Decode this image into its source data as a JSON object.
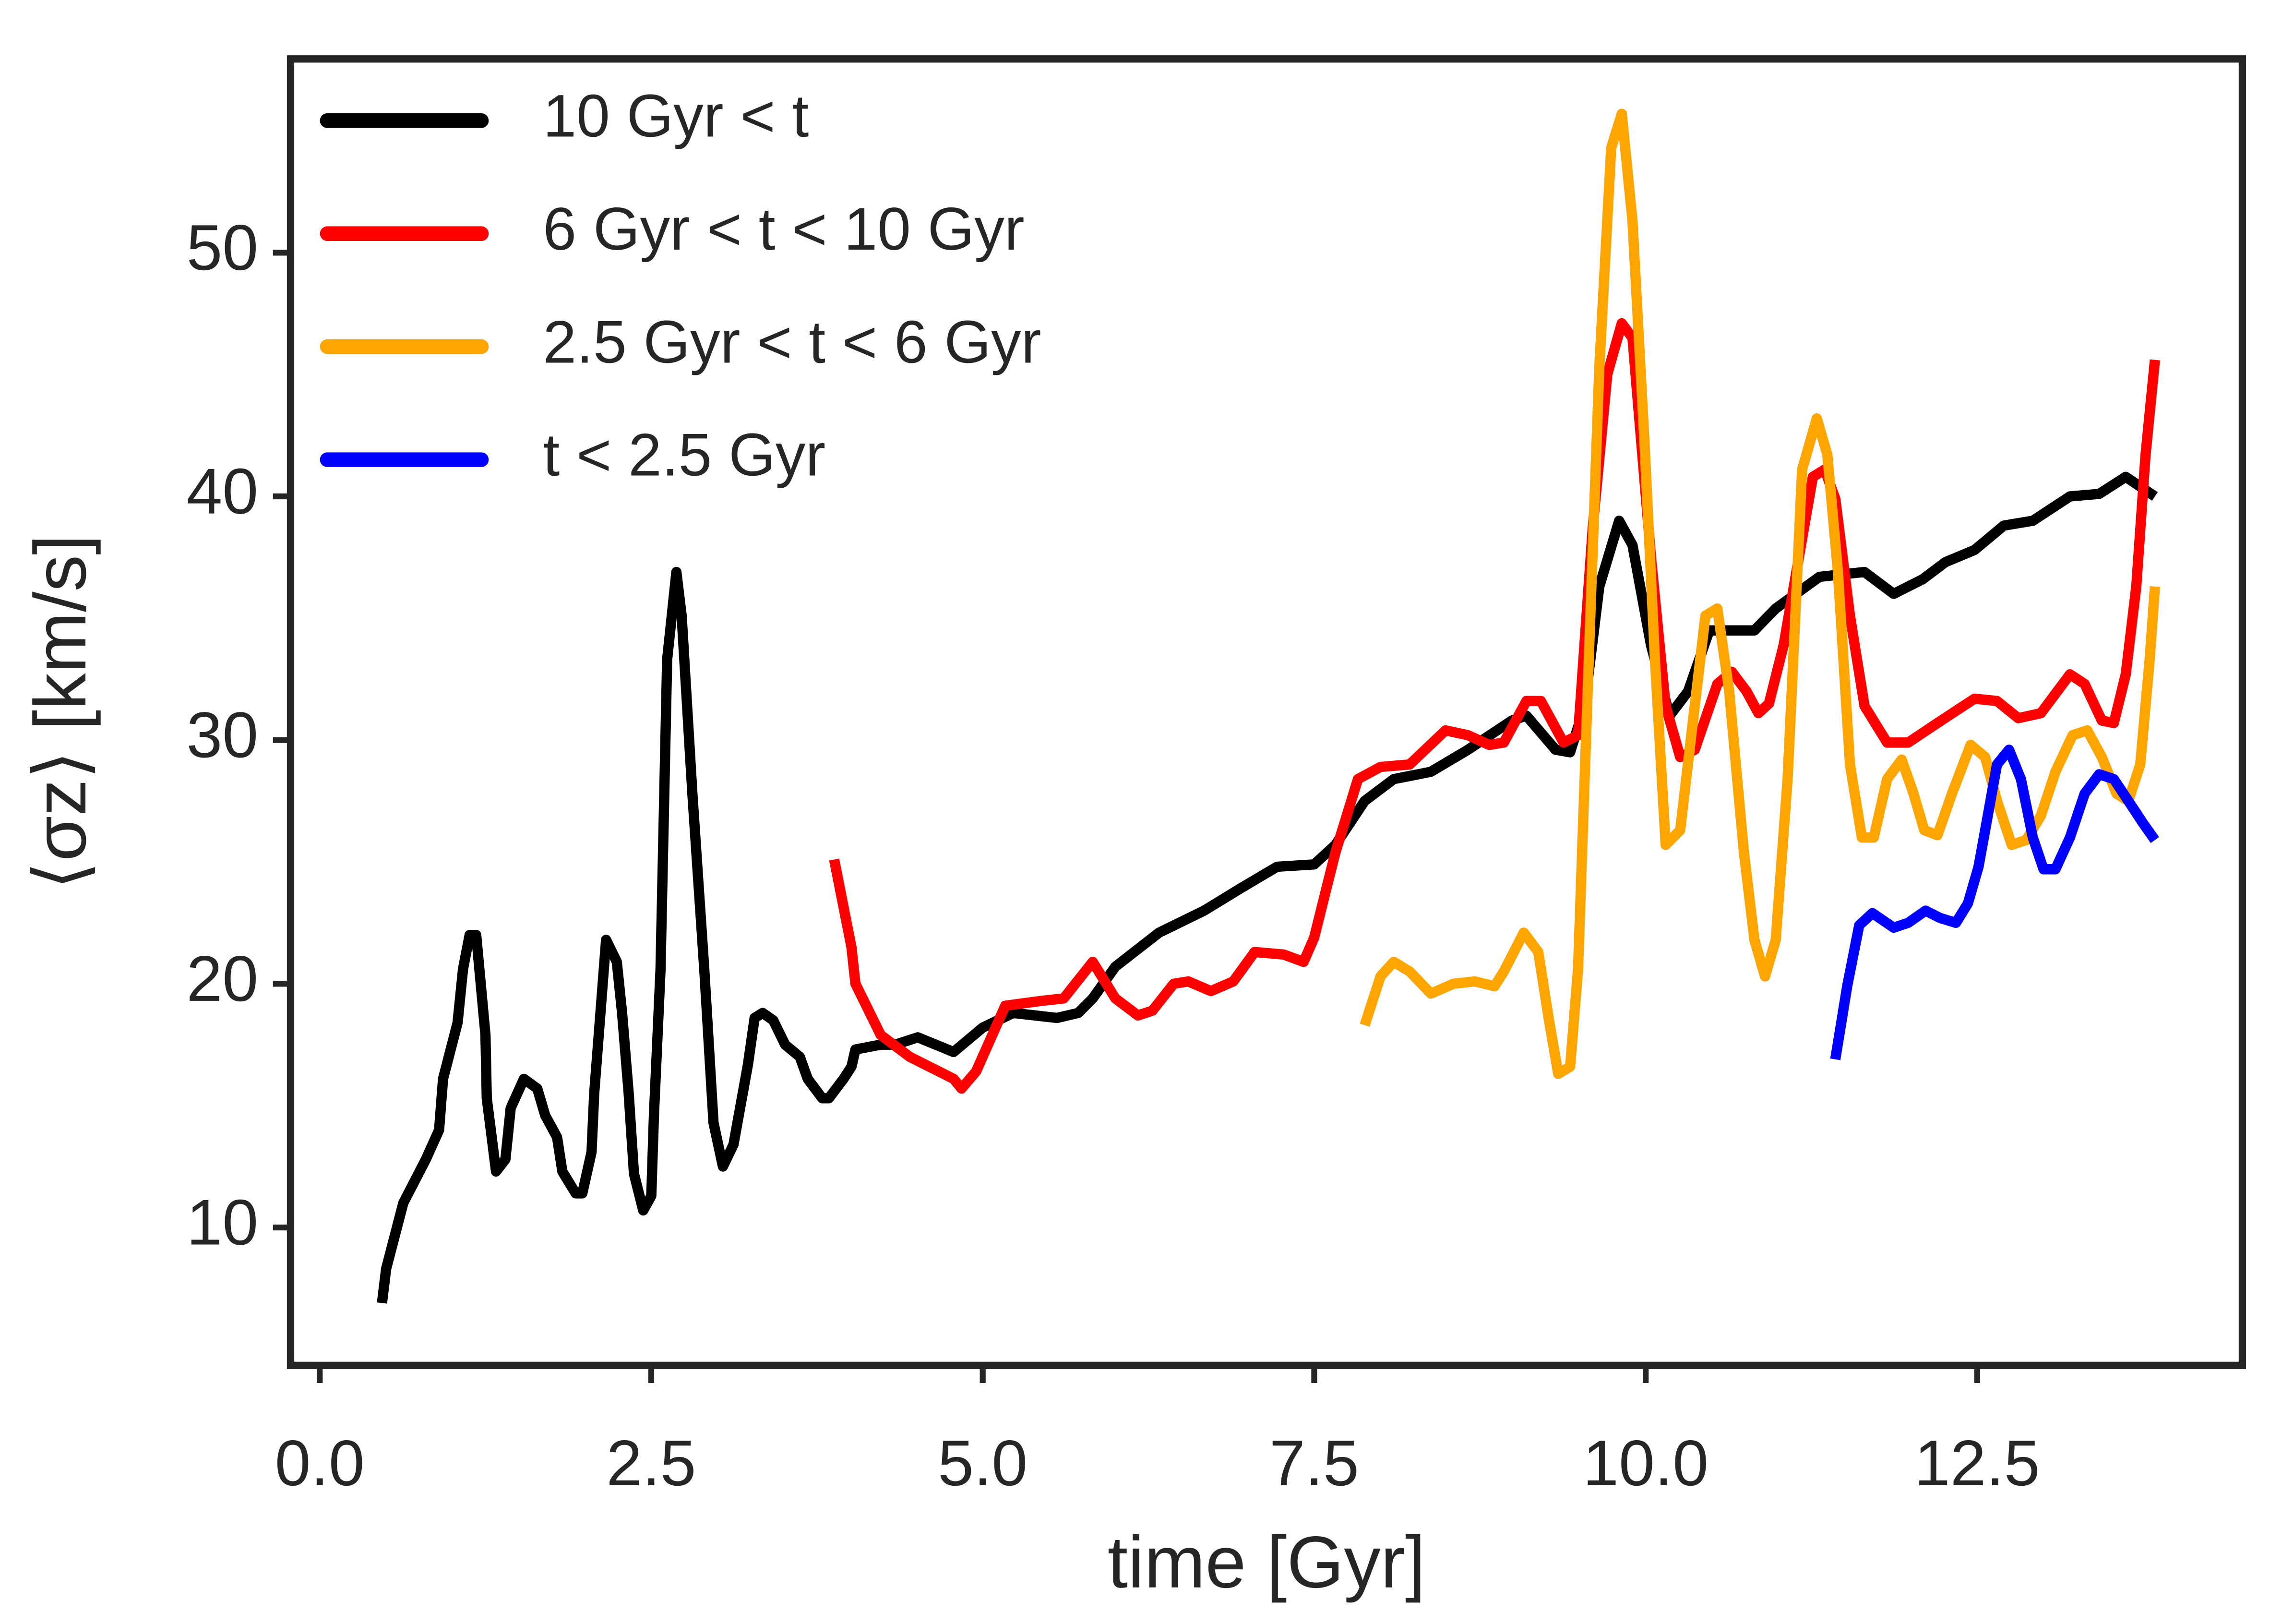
{
  "chart_data": {
    "type": "line",
    "xlabel": "time [Gyr]",
    "ylabel": "⟨σz⟩ [km/s]",
    "xlim": [
      -0.22,
      14.5
    ],
    "ylim": [
      4.34,
      57.95
    ],
    "xticks": [
      {
        "value": 0,
        "label": "0.0"
      },
      2.5,
      {
        "value": 5,
        "label": "5.0"
      },
      {
        "value": 7.5,
        "label": "7.5"
      },
      {
        "value": 10,
        "label": "10.0"
      },
      12.5
    ],
    "yticks": [
      10,
      20,
      30,
      40,
      50
    ],
    "legend": "upper left",
    "grid": false,
    "series": [
      {
        "name": "10 Gyr < t",
        "color": "#000000",
        "x": [
          0.47,
          0.5,
          0.63,
          0.8,
          0.9,
          0.93,
          1.04,
          1.08,
          1.13,
          1.18,
          1.25,
          1.26,
          1.33,
          1.4,
          1.44,
          1.54,
          1.64,
          1.7,
          1.79,
          1.83,
          1.93,
          1.98,
          2.05,
          2.07,
          2.16,
          2.24,
          2.28,
          2.33,
          2.37,
          2.44,
          2.5,
          2.52,
          2.57,
          2.62,
          2.69,
          2.73,
          2.81,
          2.9,
          2.97,
          3.04,
          3.12,
          3.23,
          3.28,
          3.34,
          3.42,
          3.51,
          3.62,
          3.68,
          3.79,
          3.84,
          3.95,
          4.01,
          4.04,
          4.23,
          4.34,
          4.51,
          4.78,
          5.0,
          5.23,
          5.56,
          5.72,
          5.83,
          6.0,
          6.33,
          6.67,
          6.94,
          7.22,
          7.5,
          7.66,
          7.88,
          8.1,
          8.38,
          8.66,
          8.99,
          9.1,
          9.32,
          9.43,
          9.54,
          9.65,
          9.8,
          9.9,
          10.04,
          10.18,
          10.32,
          10.48,
          10.65,
          10.82,
          10.98,
          11.31,
          11.65,
          11.87,
          12.09,
          12.26,
          12.48,
          12.7,
          12.92,
          13.2,
          13.42,
          13.62,
          13.84
        ],
        "values": [
          6.9,
          8.3,
          11.0,
          12.8,
          14,
          16.1,
          18.4,
          20.6,
          22,
          22,
          17.9,
          15.3,
          12.3,
          12.8,
          14.9,
          16.1,
          15.7,
          14.6,
          13.7,
          12.3,
          11.4,
          11.4,
          13.1,
          15.5,
          21.8,
          20.9,
          18.8,
          15.5,
          12.2,
          10.7,
          11.3,
          14.6,
          20.6,
          33.3,
          36.9,
          35.1,
          27.8,
          20.6,
          14.3,
          12.5,
          13.4,
          16.7,
          18.6,
          18.8,
          18.5,
          17.5,
          17,
          16.1,
          15.3,
          15.3,
          16.1,
          16.6,
          17.3,
          17.5,
          17.5,
          17.8,
          17.2,
          18.2,
          18.8,
          18.6,
          18.8,
          19.4,
          20.7,
          22.1,
          23,
          23.9,
          24.8,
          24.9,
          25.7,
          27.5,
          28.4,
          28.7,
          29.6,
          30.8,
          31,
          29.6,
          29.5,
          31.4,
          36.3,
          39,
          38,
          33.9,
          31,
          32,
          34.5,
          34.5,
          34.5,
          35.4,
          36.7,
          36.9,
          36,
          36.6,
          37.3,
          37.8,
          38.8,
          39,
          40,
          40.1,
          40.8,
          40
        ]
      },
      {
        "name": "6 Gyr < t < 10 Gyr",
        "color": "#ff0000",
        "x": [
          3.88,
          4.01,
          4.04,
          4.23,
          4.45,
          4.78,
          4.84,
          4.95,
          5.17,
          5.45,
          5.61,
          5.83,
          6.0,
          6.17,
          6.28,
          6.44,
          6.55,
          6.72,
          6.89,
          7.05,
          7.27,
          7.42,
          7.5,
          7.66,
          7.83,
          8.0,
          8.22,
          8.49,
          8.66,
          8.82,
          8.93,
          9.1,
          9.21,
          9.38,
          9.49,
          9.6,
          9.71,
          9.82,
          9.9,
          10.04,
          10.15,
          10.26,
          10.37,
          10.54,
          10.65,
          10.76,
          10.85,
          10.93,
          11.04,
          11.26,
          11.35,
          11.43,
          11.54,
          11.65,
          11.82,
          11.98,
          12.2,
          12.48,
          12.65,
          12.81,
          12.98,
          13.2,
          13.31,
          13.44,
          13.53,
          13.62,
          13.7,
          13.77,
          13.84
        ],
        "values": [
          25.1,
          21.5,
          20,
          17.9,
          17,
          16.1,
          15.7,
          16.4,
          19.1,
          19.3,
          19.4,
          20.9,
          19.4,
          18.7,
          18.9,
          20,
          20.1,
          19.7,
          20.1,
          21.3,
          21.2,
          20.9,
          21.9,
          25.4,
          28.4,
          28.9,
          29,
          30.4,
          30.2,
          29.8,
          29.9,
          31.6,
          31.6,
          29.9,
          30.2,
          38.7,
          45,
          47.1,
          46.5,
          37.5,
          31.4,
          29.3,
          29.6,
          32.3,
          32.8,
          32,
          31.1,
          31.5,
          33.9,
          40.8,
          41.1,
          39.9,
          35.1,
          31.4,
          29.9,
          29.9,
          30.7,
          31.7,
          31.6,
          30.9,
          31.1,
          32.7,
          32.3,
          30.8,
          30.7,
          32.7,
          36.3,
          41.7,
          45.6
        ]
      },
      {
        "name": "2.5 Gyr < t < 6 Gyr",
        "color": "#ffa500",
        "x": [
          7.88,
          8.0,
          8.1,
          8.22,
          8.38,
          8.55,
          8.71,
          8.86,
          8.93,
          9.08,
          9.19,
          9.27,
          9.34,
          9.43,
          9.49,
          9.57,
          9.65,
          9.74,
          9.82,
          9.9,
          9.99,
          10.07,
          10.15,
          10.26,
          10.37,
          10.45,
          10.54,
          10.63,
          10.74,
          10.82,
          10.9,
          10.98,
          11.07,
          11.18,
          11.29,
          11.37,
          11.45,
          11.54,
          11.63,
          11.72,
          11.82,
          11.93,
          12.02,
          12.1,
          12.2,
          12.31,
          12.45,
          12.56,
          12.65,
          12.76,
          12.87,
          12.98,
          13.09,
          13.22,
          13.33,
          13.44,
          13.55,
          13.64,
          13.73,
          13.8,
          13.84
        ],
        "values": [
          18.3,
          20.3,
          20.9,
          20.5,
          19.6,
          20,
          20.1,
          19.9,
          20.5,
          22.1,
          21.3,
          18.5,
          16.3,
          16.6,
          20.6,
          33.3,
          45.3,
          54.3,
          55.7,
          51.3,
          42.3,
          33.3,
          25.7,
          26.3,
          31.4,
          35.1,
          35.4,
          32,
          25.4,
          21.8,
          20.3,
          21.8,
          28.4,
          41.1,
          43.2,
          41.7,
          36.9,
          29,
          26,
          26,
          28.4,
          29.2,
          27.8,
          26.3,
          26.1,
          27.8,
          29.8,
          29.3,
          27.5,
          25.7,
          25.9,
          26.9,
          28.7,
          30.2,
          30.4,
          29.3,
          27.8,
          27.5,
          29,
          33.3,
          36.3
        ]
      },
      {
        "name": "t < 2.5 Gyr",
        "color": "#0000ff",
        "x": [
          11.43,
          11.52,
          11.61,
          11.71,
          11.87,
          11.98,
          12.11,
          12.22,
          12.34,
          12.43,
          12.51,
          12.59,
          12.65,
          12.74,
          12.83,
          12.92,
          13.0,
          13.09,
          13.2,
          13.31,
          13.42,
          13.53,
          13.64,
          13.75,
          13.84
        ],
        "values": [
          16.9,
          19.9,
          22.4,
          22.9,
          22.3,
          22.5,
          23,
          22.7,
          22.5,
          23.3,
          24.8,
          27.2,
          29,
          29.6,
          28.4,
          26,
          24.7,
          24.7,
          26,
          27.8,
          28.6,
          28.4,
          27.5,
          26.6,
          25.9
        ]
      }
    ]
  }
}
